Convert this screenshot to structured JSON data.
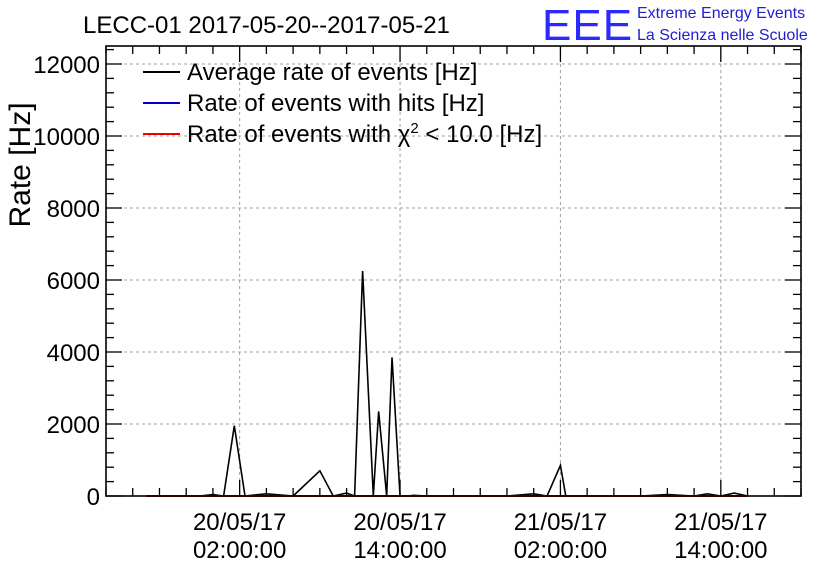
{
  "chart_data": {
    "type": "line",
    "title": "LECC-01 2017-05-20--2017-05-21",
    "xlabel": "",
    "ylabel": "Rate [Hz]",
    "ylim": [
      0,
      12500
    ],
    "y_ticks": [
      0,
      2000,
      4000,
      6000,
      8000,
      10000,
      12000
    ],
    "y_tick_labels": [
      "0",
      "2000",
      "4000",
      "6000",
      "8000",
      "10000",
      "12000"
    ],
    "xlim_hours": [
      -8,
      44
    ],
    "x_major_ticks_hours": [
      2,
      14,
      26,
      38
    ],
    "x_tick_labels": [
      {
        "date": "20/05/17",
        "time": "02:00:00"
      },
      {
        "date": "20/05/17",
        "time": "14:00:00"
      },
      {
        "date": "21/05/17",
        "time": "02:00:00"
      },
      {
        "date": "21/05/17",
        "time": "14:00:00"
      }
    ],
    "grid": true,
    "legend_position": "top-left",
    "logo": {
      "mark": "EEE",
      "line1": "Extreme Energy Events",
      "line2": "La Scienza nelle Scuole"
    },
    "series": [
      {
        "name": "Average rate of events [Hz]",
        "color": "#000000",
        "x": [
          -5,
          -3,
          -1,
          0,
          0.8,
          1.6,
          2.4,
          4,
          6,
          8,
          9,
          10,
          10.6,
          11.2,
          12,
          12.4,
          13,
          13.4,
          14,
          14.6,
          15,
          16,
          18,
          20,
          22,
          24,
          25,
          26,
          26.4,
          27,
          28,
          30,
          32,
          34,
          36,
          37,
          38,
          39,
          40
        ],
        "y": [
          0,
          0,
          0,
          40,
          0,
          1950,
          0,
          60,
          0,
          700,
          0,
          80,
          0,
          6250,
          0,
          2350,
          0,
          3850,
          0,
          0,
          20,
          0,
          0,
          0,
          0,
          60,
          0,
          850,
          0,
          0,
          0,
          0,
          0,
          40,
          0,
          60,
          0,
          80,
          0
        ]
      },
      {
        "name": "Rate of events with hits [Hz]",
        "color": "#0000cc",
        "x": [
          -5,
          40
        ],
        "y": [
          0,
          0
        ]
      },
      {
        "name": "Rate of events with χ² < 10.0 [Hz]",
        "legend_main": "Rate of events with χ",
        "legend_sup": "2",
        "legend_tail": " < 10.0 [Hz]",
        "color": "#ee0000",
        "x": [
          -5,
          40
        ],
        "y": [
          0,
          0
        ]
      }
    ]
  }
}
